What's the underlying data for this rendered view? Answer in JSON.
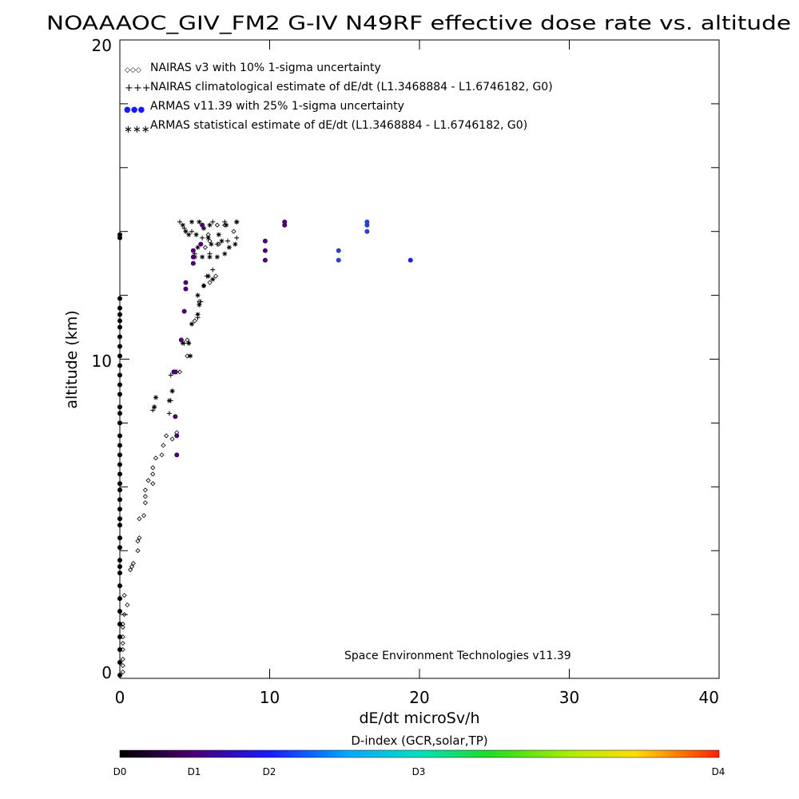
{
  "chart_data": {
    "type": "scatter",
    "title": "NOAAAOC_GIV_FM2 G-IV   N49RF  effective dose rate vs. altitude",
    "xlabel": "dE/dt microSv/h",
    "ylabel": "altitude (km)",
    "xlim": [
      0,
      40
    ],
    "ylim": [
      0,
      20
    ],
    "x_ticks": [
      "0",
      "10",
      "20",
      "30",
      "40"
    ],
    "y_ticks": [
      "0",
      "10",
      "20"
    ],
    "legend_position": "top-left",
    "legend": [
      {
        "marker": "◇◇◇",
        "label": "NAIRAS v3 with 10% 1-sigma uncertainty"
      },
      {
        "marker": "+++",
        "label": "NAIRAS climatological estimate of dE/dt (L1.3468884 - L1.6746182, G0)"
      },
      {
        "marker": "●●●",
        "label": "ARMAS v11.39 with 25% 1-sigma uncertainty"
      },
      {
        "marker": "∗∗∗",
        "label": "ARMAS statistical estimate of dE/dt (L1.3468884 - L1.6746182, G0)"
      }
    ],
    "annotation": "Space Environment Technologies v11.39",
    "colorbar": {
      "title": "D-index (GCR,solar,TP)",
      "labels": [
        {
          "text": "D0",
          "value": 0
        },
        {
          "text": "D1",
          "value": 0.5
        },
        {
          "text": "D2",
          "value": 1
        },
        {
          "text": "D3",
          "value": 2
        },
        {
          "text": "D4",
          "value": 4
        }
      ]
    },
    "series": [
      {
        "marker": "diamond",
        "points": [
          [
            0.2,
            0.2
          ],
          [
            0.2,
            0.4
          ],
          [
            0.2,
            0.6
          ],
          [
            0.2,
            0.9
          ],
          [
            0.2,
            1.1
          ],
          [
            0.2,
            1.3
          ],
          [
            0.2,
            1.6
          ],
          [
            0.2,
            1.7
          ],
          [
            0.3,
            2.0
          ],
          [
            0.3,
            2.6
          ],
          [
            0.5,
            2.3
          ],
          [
            0.7,
            3.4
          ],
          [
            0.8,
            3.5
          ],
          [
            0.9,
            3.6
          ],
          [
            1.2,
            4.0
          ],
          [
            1.2,
            4.3
          ],
          [
            1.3,
            4.4
          ],
          [
            1.3,
            5.0
          ],
          [
            1.6,
            5.1
          ],
          [
            1.7,
            5.5
          ],
          [
            1.7,
            5.7
          ],
          [
            1.7,
            5.9
          ],
          [
            1.9,
            6.2
          ],
          [
            2.2,
            6.1
          ],
          [
            2.2,
            6.4
          ],
          [
            2.2,
            6.6
          ],
          [
            2.4,
            6.9
          ],
          [
            2.8,
            7.0
          ],
          [
            2.9,
            7.3
          ],
          [
            3.1,
            7.6
          ],
          [
            3.5,
            7.5
          ],
          [
            3.8,
            7.7
          ],
          [
            4.0,
            9.6
          ],
          [
            4.5,
            10.1
          ],
          [
            4.5,
            10.6
          ],
          [
            5.0,
            11.2
          ],
          [
            5.3,
            11.8
          ],
          [
            5.6,
            12.3
          ],
          [
            6.0,
            12.4
          ],
          [
            6.4,
            12.6
          ],
          [
            5.7,
            13.5
          ],
          [
            6.0,
            13.7
          ],
          [
            6.5,
            14.2
          ],
          [
            7.0,
            14.2
          ],
          [
            7.6,
            14.0
          ],
          [
            5.9,
            13.9
          ],
          [
            6.6,
            13.6
          ]
        ]
      },
      {
        "marker": "plus",
        "points": [
          [
            2.2,
            8.4
          ],
          [
            2.3,
            8.5
          ],
          [
            3.3,
            8.3
          ],
          [
            3.4,
            8.7
          ],
          [
            3.5,
            9.0
          ],
          [
            3.4,
            9.5
          ],
          [
            3.8,
            9.6
          ],
          [
            4.3,
            10.5
          ],
          [
            4.6,
            10.5
          ],
          [
            4.8,
            11.1
          ],
          [
            5.2,
            11.3
          ],
          [
            5.4,
            11.8
          ],
          [
            5.6,
            12.3
          ],
          [
            5.8,
            12.6
          ],
          [
            6.2,
            12.8
          ],
          [
            6.0,
            13.3
          ],
          [
            6.5,
            13.6
          ],
          [
            7.2,
            13.7
          ],
          [
            7.8,
            13.8
          ],
          [
            4.8,
            14.0
          ],
          [
            5.6,
            14.1
          ],
          [
            6.2,
            14.3
          ],
          [
            7.0,
            14.3
          ],
          [
            7.8,
            14.3
          ],
          [
            4.0,
            14.3
          ],
          [
            4.3,
            14.1
          ],
          [
            5.0,
            13.3
          ],
          [
            5.5,
            13.8
          ]
        ]
      },
      {
        "marker": "star",
        "points": [
          [
            2.3,
            8.5
          ],
          [
            2.4,
            8.8
          ],
          [
            3.3,
            8.7
          ],
          [
            3.5,
            9.0
          ],
          [
            3.6,
            9.6
          ],
          [
            4.2,
            10.5
          ],
          [
            4.6,
            10.5
          ],
          [
            4.7,
            10.1
          ],
          [
            4.8,
            11.1
          ],
          [
            5.2,
            11.4
          ],
          [
            5.3,
            11.7
          ],
          [
            5.2,
            12.0
          ],
          [
            5.6,
            12.3
          ],
          [
            5.9,
            12.6
          ],
          [
            6.2,
            12.5
          ],
          [
            5.0,
            13.2
          ],
          [
            5.5,
            13.2
          ],
          [
            6.0,
            13.2
          ],
          [
            6.5,
            13.2
          ],
          [
            7.0,
            13.3
          ],
          [
            7.3,
            13.5
          ],
          [
            7.7,
            13.6
          ],
          [
            5.2,
            13.5
          ],
          [
            6.1,
            13.6
          ],
          [
            6.8,
            13.7
          ],
          [
            4.6,
            13.9
          ],
          [
            5.1,
            13.9
          ],
          [
            5.9,
            13.8
          ],
          [
            6.6,
            13.9
          ],
          [
            4.2,
            14.2
          ],
          [
            4.8,
            14.3
          ],
          [
            5.3,
            14.3
          ],
          [
            6.0,
            14.2
          ],
          [
            7.1,
            14.2
          ],
          [
            7.8,
            14.3
          ],
          [
            4.4,
            14.0
          ],
          [
            5.6,
            14.1
          ]
        ]
      },
      {
        "marker": "dot",
        "points": [
          {
            "x": 0,
            "y": 0.1,
            "d": 0
          },
          {
            "x": 0,
            "y": 0.5,
            "d": 0
          },
          {
            "x": 0,
            "y": 0.9,
            "d": 0
          },
          {
            "x": 0,
            "y": 1.3,
            "d": 0
          },
          {
            "x": 0,
            "y": 1.7,
            "d": 0
          },
          {
            "x": 0,
            "y": 2.1,
            "d": 0
          },
          {
            "x": 0,
            "y": 2.5,
            "d": 0
          },
          {
            "x": 0,
            "y": 2.9,
            "d": 0
          },
          {
            "x": 0,
            "y": 3.3,
            "d": 0
          },
          {
            "x": 0,
            "y": 3.5,
            "d": 0
          },
          {
            "x": 0,
            "y": 3.7,
            "d": 0
          },
          {
            "x": 0,
            "y": 4.1,
            "d": 0
          },
          {
            "x": 0,
            "y": 4.4,
            "d": 0
          },
          {
            "x": 0,
            "y": 4.8,
            "d": 0
          },
          {
            "x": 0,
            "y": 5.0,
            "d": 0
          },
          {
            "x": 0,
            "y": 5.3,
            "d": 0
          },
          {
            "x": 0,
            "y": 5.6,
            "d": 0
          },
          {
            "x": 0,
            "y": 5.9,
            "d": 0
          },
          {
            "x": 0,
            "y": 6.1,
            "d": 0
          },
          {
            "x": 0,
            "y": 6.4,
            "d": 0
          },
          {
            "x": 0,
            "y": 6.7,
            "d": 0
          },
          {
            "x": 0,
            "y": 7.0,
            "d": 0
          },
          {
            "x": 0,
            "y": 7.3,
            "d": 0
          },
          {
            "x": 0,
            "y": 7.6,
            "d": 0
          },
          {
            "x": 0,
            "y": 8.0,
            "d": 0
          },
          {
            "x": 0,
            "y": 8.3,
            "d": 0
          },
          {
            "x": 0,
            "y": 8.5,
            "d": 0
          },
          {
            "x": 0,
            "y": 8.9,
            "d": 0
          },
          {
            "x": 0,
            "y": 9.2,
            "d": 0
          },
          {
            "x": 0,
            "y": 9.5,
            "d": 0
          },
          {
            "x": 0,
            "y": 9.8,
            "d": 0
          },
          {
            "x": 0,
            "y": 10.1,
            "d": 0
          },
          {
            "x": 0,
            "y": 10.4,
            "d": 0
          },
          {
            "x": 0,
            "y": 10.7,
            "d": 0
          },
          {
            "x": 0,
            "y": 11.0,
            "d": 0
          },
          {
            "x": 0,
            "y": 11.2,
            "d": 0
          },
          {
            "x": 0,
            "y": 11.4,
            "d": 0
          },
          {
            "x": 0,
            "y": 11.6,
            "d": 0
          },
          {
            "x": 0,
            "y": 11.9,
            "d": 0
          },
          {
            "x": 0,
            "y": 13.8,
            "d": 0
          },
          {
            "x": 0,
            "y": 13.9,
            "d": 0
          },
          {
            "x": 3.8,
            "y": 7.0,
            "d": 0.5
          },
          {
            "x": 3.8,
            "y": 7.6,
            "d": 0.5
          },
          {
            "x": 3.7,
            "y": 8.2,
            "d": 0.5
          },
          {
            "x": 3.7,
            "y": 9.6,
            "d": 0.5
          },
          {
            "x": 3.6,
            "y": 9.6,
            "d": 0.5
          },
          {
            "x": 4.1,
            "y": 10.6,
            "d": 0.5
          },
          {
            "x": 4.3,
            "y": 11.5,
            "d": 0.5
          },
          {
            "x": 4.4,
            "y": 12.2,
            "d": 0.5
          },
          {
            "x": 4.4,
            "y": 12.4,
            "d": 0.5
          },
          {
            "x": 4.9,
            "y": 13.0,
            "d": 0.5
          },
          {
            "x": 4.9,
            "y": 13.2,
            "d": 0.5
          },
          {
            "x": 4.9,
            "y": 13.4,
            "d": 0.5
          },
          {
            "x": 5.4,
            "y": 13.6,
            "d": 0.5
          },
          {
            "x": 5.5,
            "y": 14.2,
            "d": 0.5
          },
          {
            "x": 9.7,
            "y": 13.1,
            "d": 0.5
          },
          {
            "x": 9.7,
            "y": 13.4,
            "d": 0.5
          },
          {
            "x": 9.7,
            "y": 13.7,
            "d": 0.5
          },
          {
            "x": 11.0,
            "y": 14.2,
            "d": 0.5
          },
          {
            "x": 11.0,
            "y": 14.3,
            "d": 0.5
          },
          {
            "x": 14.6,
            "y": 13.1,
            "d": 0.9
          },
          {
            "x": 14.6,
            "y": 13.4,
            "d": 0.9
          },
          {
            "x": 16.5,
            "y": 14.0,
            "d": 0.9
          },
          {
            "x": 16.5,
            "y": 14.2,
            "d": 0.9
          },
          {
            "x": 16.5,
            "y": 14.3,
            "d": 0.9
          },
          {
            "x": 19.4,
            "y": 13.1,
            "d": 1.0
          }
        ]
      }
    ]
  }
}
